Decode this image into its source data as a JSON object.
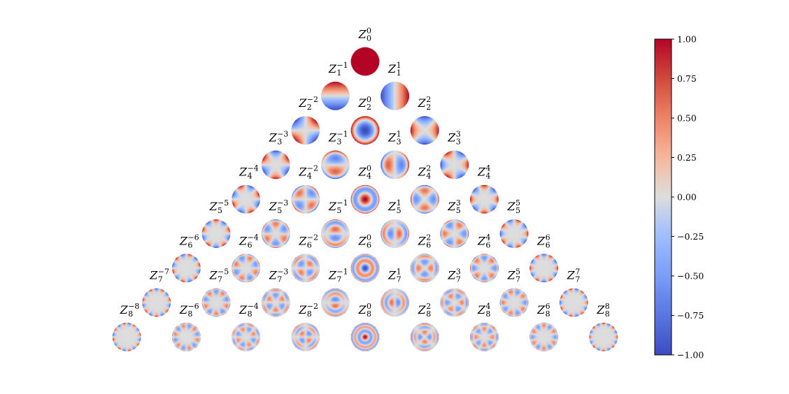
{
  "chart_data": {
    "type": "heatmap",
    "title": "",
    "description_type": "Zernike polynomial pyramid",
    "max_order": 8,
    "symbol": "Z",
    "colormap": "coolwarm",
    "clim": [
      -1.0,
      1.0
    ],
    "colorbar": {
      "ticks": [
        1.0,
        0.75,
        0.5,
        0.25,
        0.0,
        -0.25,
        -0.5,
        -0.75,
        -1.0
      ],
      "tick_labels": [
        "1.00",
        "0.75",
        "0.50",
        "0.25",
        "0.00",
        "−0.25",
        "−0.50",
        "−0.75",
        "−1.00"
      ],
      "location": "right"
    },
    "colors": {
      "min": "#3b4cc0",
      "mid": "#dddddd",
      "max": "#b40426"
    },
    "terms": [
      {
        "n": 0,
        "m": 0
      },
      {
        "n": 1,
        "m": -1
      },
      {
        "n": 1,
        "m": 1
      },
      {
        "n": 2,
        "m": -2
      },
      {
        "n": 2,
        "m": 0
      },
      {
        "n": 2,
        "m": 2
      },
      {
        "n": 3,
        "m": -3
      },
      {
        "n": 3,
        "m": -1
      },
      {
        "n": 3,
        "m": 1
      },
      {
        "n": 3,
        "m": 3
      },
      {
        "n": 4,
        "m": -4
      },
      {
        "n": 4,
        "m": -2
      },
      {
        "n": 4,
        "m": 0
      },
      {
        "n": 4,
        "m": 2
      },
      {
        "n": 4,
        "m": 4
      },
      {
        "n": 5,
        "m": -5
      },
      {
        "n": 5,
        "m": -3
      },
      {
        "n": 5,
        "m": -1
      },
      {
        "n": 5,
        "m": 1
      },
      {
        "n": 5,
        "m": 3
      },
      {
        "n": 5,
        "m": 5
      },
      {
        "n": 6,
        "m": -6
      },
      {
        "n": 6,
        "m": -4
      },
      {
        "n": 6,
        "m": -2
      },
      {
        "n": 6,
        "m": 0
      },
      {
        "n": 6,
        "m": 2
      },
      {
        "n": 6,
        "m": 4
      },
      {
        "n": 6,
        "m": 6
      },
      {
        "n": 7,
        "m": -7
      },
      {
        "n": 7,
        "m": -5
      },
      {
        "n": 7,
        "m": -3
      },
      {
        "n": 7,
        "m": -1
      },
      {
        "n": 7,
        "m": 1
      },
      {
        "n": 7,
        "m": 3
      },
      {
        "n": 7,
        "m": 5
      },
      {
        "n": 7,
        "m": 7
      },
      {
        "n": 8,
        "m": -8
      },
      {
        "n": 8,
        "m": -6
      },
      {
        "n": 8,
        "m": -4
      },
      {
        "n": 8,
        "m": -2
      },
      {
        "n": 8,
        "m": 0
      },
      {
        "n": 8,
        "m": 2
      },
      {
        "n": 8,
        "m": 4
      },
      {
        "n": 8,
        "m": 6
      },
      {
        "n": 8,
        "m": 8
      }
    ]
  }
}
